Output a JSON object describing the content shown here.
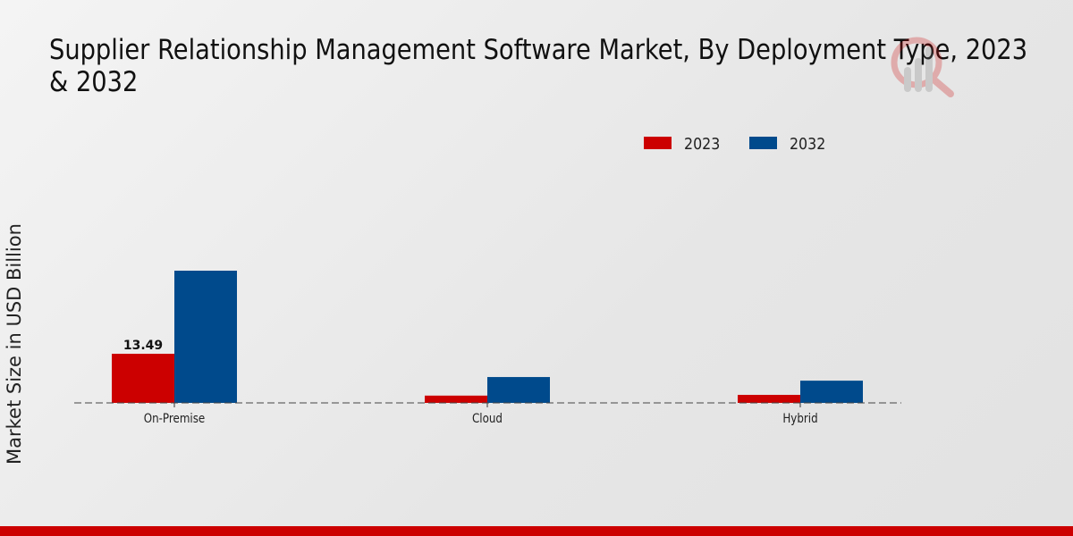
{
  "title_line1": "Supplier Relationship Management Software Market, By Deployment Type, 2023",
  "title_line2": "& 2032",
  "chart_data": {
    "type": "bar",
    "title": "Supplier Relationship Management Software Market, By Deployment Type, 2023 & 2032",
    "xlabel": "",
    "ylabel": "Market Size in USD Billion",
    "categories": [
      "On-Premise",
      "Cloud",
      "Hybrid"
    ],
    "series": [
      {
        "name": "2023",
        "color": "#cc0000",
        "values": [
          13.49,
          2.0,
          2.2
        ]
      },
      {
        "name": "2032",
        "color": "#004a8c",
        "values": [
          36.3,
          7.1,
          6.1
        ]
      }
    ],
    "data_labels": [
      {
        "series": "2023",
        "category": "On-Premise",
        "text": "13.49"
      }
    ],
    "legend_position": "top-right",
    "grid": false
  }
}
